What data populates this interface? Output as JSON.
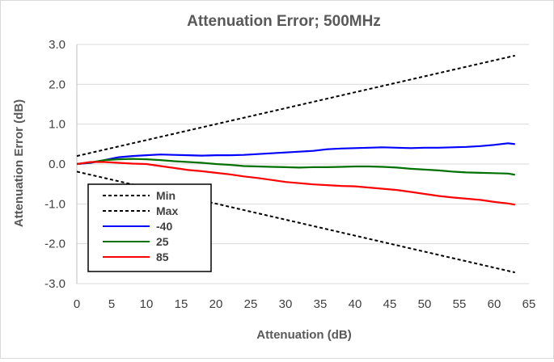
{
  "chart_data": {
    "type": "line",
    "title": "Attenuation Error; 500MHz",
    "xlabel": "Attenuation (dB)",
    "ylabel": "Attenuation Error (dB)",
    "xlim": [
      0,
      65
    ],
    "ylim": [
      -3.0,
      3.0
    ],
    "xticks": [
      "0",
      "5",
      "10",
      "15",
      "20",
      "25",
      "30",
      "35",
      "40",
      "45",
      "50",
      "55",
      "60",
      "65"
    ],
    "yticks": [
      "3.0",
      "2.0",
      "1.0",
      "0.0",
      "-1.0",
      "-2.0",
      "-3.0"
    ],
    "grid": "horizontal",
    "legend_position": "bottom-left",
    "series": [
      {
        "name": "Min",
        "color": "#000000",
        "dash": "dashed",
        "x": [
          0,
          63
        ],
        "y": [
          -0.19,
          -2.72
        ]
      },
      {
        "name": "Max",
        "color": "#000000",
        "dash": "dashed",
        "x": [
          0,
          63
        ],
        "y": [
          0.2,
          2.72
        ]
      },
      {
        "name": "-40",
        "color": "#0000ff",
        "dash": "solid",
        "x": [
          0,
          2,
          4,
          6,
          8,
          10,
          12,
          14,
          16,
          18,
          20,
          22,
          24,
          26,
          28,
          30,
          32,
          34,
          36,
          38,
          40,
          42,
          44,
          46,
          48,
          50,
          52,
          54,
          56,
          58,
          60,
          62,
          63
        ],
        "y": [
          0.0,
          0.03,
          0.1,
          0.17,
          0.2,
          0.22,
          0.24,
          0.23,
          0.22,
          0.21,
          0.22,
          0.22,
          0.23,
          0.25,
          0.27,
          0.29,
          0.31,
          0.33,
          0.37,
          0.39,
          0.4,
          0.41,
          0.42,
          0.41,
          0.4,
          0.41,
          0.41,
          0.42,
          0.43,
          0.45,
          0.48,
          0.52,
          0.5
        ]
      },
      {
        "name": "25",
        "color": "#007000",
        "dash": "solid",
        "x": [
          0,
          2,
          4,
          6,
          8,
          10,
          12,
          14,
          16,
          18,
          20,
          22,
          24,
          26,
          28,
          30,
          32,
          34,
          36,
          38,
          40,
          42,
          44,
          46,
          48,
          50,
          52,
          54,
          56,
          58,
          60,
          62,
          63
        ],
        "y": [
          0.0,
          0.04,
          0.1,
          0.12,
          0.13,
          0.12,
          0.1,
          0.07,
          0.05,
          0.03,
          0.0,
          -0.02,
          -0.05,
          -0.06,
          -0.07,
          -0.08,
          -0.09,
          -0.08,
          -0.08,
          -0.07,
          -0.06,
          -0.06,
          -0.07,
          -0.09,
          -0.12,
          -0.14,
          -0.16,
          -0.19,
          -0.21,
          -0.22,
          -0.23,
          -0.24,
          -0.27
        ]
      },
      {
        "name": "85",
        "color": "#ff0000",
        "dash": "solid",
        "x": [
          0,
          2,
          4,
          6,
          8,
          10,
          12,
          14,
          16,
          18,
          20,
          22,
          24,
          26,
          28,
          30,
          32,
          34,
          36,
          38,
          40,
          42,
          44,
          46,
          48,
          50,
          52,
          54,
          56,
          58,
          60,
          62,
          63
        ],
        "y": [
          0.0,
          0.05,
          0.05,
          0.03,
          0.01,
          0.0,
          -0.05,
          -0.1,
          -0.15,
          -0.18,
          -0.22,
          -0.26,
          -0.31,
          -0.35,
          -0.4,
          -0.45,
          -0.48,
          -0.51,
          -0.53,
          -0.55,
          -0.56,
          -0.59,
          -0.62,
          -0.65,
          -0.7,
          -0.75,
          -0.8,
          -0.84,
          -0.87,
          -0.9,
          -0.95,
          -0.99,
          -1.02
        ]
      }
    ]
  }
}
